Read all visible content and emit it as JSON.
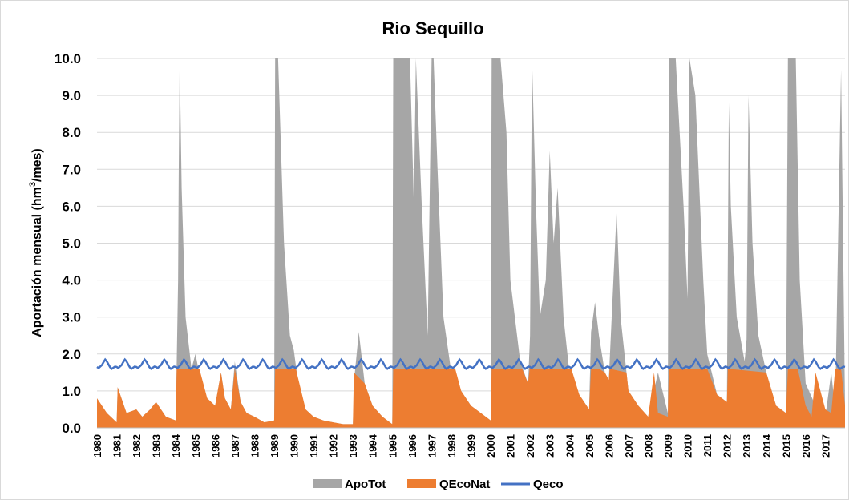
{
  "chart_data": {
    "type": "area",
    "title": "Rio Sequillo",
    "ylabel_prefix": "Aportación mensual (hm",
    "ylabel_sup": "3",
    "ylabel_suffix": "/mes)",
    "ylim": [
      0,
      10
    ],
    "yticks": [
      "0.0",
      "1.0",
      "2.0",
      "3.0",
      "4.0",
      "5.0",
      "6.0",
      "7.0",
      "8.0",
      "9.0",
      "10.0"
    ],
    "grid": true,
    "legend_position": "bottom",
    "x_start_year": 1980,
    "x_end_year": 2018,
    "xticks": [
      "1980",
      "1981",
      "1982",
      "1983",
      "1984",
      "1985",
      "1986",
      "1987",
      "1988",
      "1989",
      "1990",
      "1991",
      "1992",
      "1993",
      "1994",
      "1995",
      "1996",
      "1997",
      "1998",
      "1999",
      "2000",
      "2001",
      "2002",
      "2003",
      "2004",
      "2005",
      "2006",
      "2007",
      "2008",
      "2009",
      "2010",
      "2011",
      "2012",
      "2013",
      "2014",
      "2015",
      "2016",
      "2017"
    ],
    "series": [
      {
        "name": "ApoTot",
        "color": "#a6a6a6",
        "x": [
          1980.0,
          1980.5,
          1981.0,
          1981.05,
          1981.5,
          1982.0,
          1982.3,
          1982.7,
          1983.0,
          1983.5,
          1984.0,
          1984.12,
          1984.15,
          1984.2,
          1984.3,
          1984.5,
          1984.8,
          1985.0,
          1985.3,
          1985.6,
          1986.0,
          1986.3,
          1986.5,
          1986.8,
          1987.0,
          1987.3,
          1987.6,
          1988.0,
          1988.5,
          1989.0,
          1989.05,
          1989.2,
          1989.5,
          1989.8,
          1990.0,
          1990.3,
          1990.6,
          1991.0,
          1991.5,
          1992.0,
          1992.5,
          1993.0,
          1993.1,
          1993.3,
          1993.6,
          1994.0,
          1994.5,
          1995.0,
          1995.05,
          1995.5,
          1995.9,
          1996.1,
          1996.2,
          1996.5,
          1996.8,
          1997.0,
          1997.1,
          1997.3,
          1997.6,
          1998.0,
          1998.5,
          1999.0,
          1999.5,
          2000.0,
          2000.05,
          2000.5,
          2000.8,
          2001.0,
          2001.5,
          2001.9,
          2002.0,
          2002.1,
          2002.3,
          2002.5,
          2002.8,
          2003.0,
          2003.2,
          2003.4,
          2003.7,
          2004.0,
          2004.5,
          2005.0,
          2005.1,
          2005.3,
          2005.5,
          2005.8,
          2006.0,
          2006.2,
          2006.4,
          2006.6,
          2006.9,
          2007.0,
          2007.5,
          2008.0,
          2008.5,
          2009.0,
          2009.05,
          2009.4,
          2009.8,
          2010.0,
          2010.1,
          2010.4,
          2010.8,
          2011.0,
          2011.5,
          2012.0,
          2012.1,
          2012.2,
          2012.5,
          2012.9,
          2013.0,
          2013.1,
          2013.3,
          2013.6,
          2014.0,
          2014.5,
          2015.0,
          2015.1,
          2015.3,
          2015.5,
          2015.7,
          2016.0,
          2016.5,
          2017.0,
          2017.3,
          2017.5,
          2017.8,
          2018.0
        ],
        "values": [
          0.8,
          0.4,
          0.15,
          1.1,
          0.4,
          0.5,
          0.3,
          0.5,
          0.7,
          0.3,
          0.2,
          4.0,
          6.8,
          10.0,
          6.5,
          3.0,
          1.6,
          2.0,
          1.2,
          0.8,
          0.6,
          1.5,
          0.8,
          0.5,
          1.8,
          0.7,
          0.4,
          0.3,
          0.15,
          0.2,
          10.0,
          10.0,
          5.0,
          2.5,
          2.1,
          0.9,
          0.5,
          0.3,
          0.2,
          0.15,
          0.1,
          0.1,
          1.5,
          2.6,
          1.2,
          0.6,
          0.3,
          0.1,
          10.0,
          10.0,
          10.0,
          6.0,
          10.0,
          6.0,
          2.5,
          10.0,
          10.0,
          7.0,
          3.0,
          1.5,
          1.0,
          0.6,
          0.4,
          0.2,
          10.0,
          10.0,
          8.0,
          4.0,
          1.8,
          1.2,
          2.5,
          10.0,
          6.0,
          3.0,
          4.0,
          7.5,
          5.0,
          6.5,
          3.0,
          1.5,
          0.9,
          0.5,
          2.6,
          3.4,
          2.5,
          1.5,
          1.3,
          3.6,
          5.9,
          3.0,
          1.5,
          1.0,
          0.6,
          0.3,
          1.5,
          0.4,
          10.0,
          10.0,
          6.0,
          3.5,
          10.0,
          9.0,
          4.0,
          2.0,
          0.9,
          0.7,
          8.8,
          6.0,
          3.0,
          1.8,
          2.4,
          9.0,
          5.0,
          2.5,
          1.5,
          0.6,
          0.4,
          10.0,
          10.0,
          10.0,
          4.0,
          1.2,
          0.6,
          0.3,
          1.5,
          0.5,
          9.7,
          0.6
        ]
      },
      {
        "name": "QEcoNat",
        "color": "#ed7d31",
        "x": [
          1980.0,
          1980.5,
          1981.0,
          1981.05,
          1981.5,
          1982.0,
          1982.3,
          1982.7,
          1983.0,
          1983.5,
          1984.0,
          1984.05,
          1985.2,
          1985.6,
          1986.0,
          1986.3,
          1986.5,
          1986.8,
          1987.0,
          1987.3,
          1987.6,
          1988.0,
          1988.5,
          1989.0,
          1989.05,
          1990.1,
          1990.6,
          1991.0,
          1991.5,
          1992.0,
          1992.5,
          1993.0,
          1993.05,
          1993.6,
          1994.0,
          1994.5,
          1995.0,
          1995.05,
          1998.2,
          1998.5,
          1999.0,
          1999.5,
          2000.0,
          2000.05,
          2001.6,
          2001.9,
          2002.0,
          2002.05,
          2004.1,
          2004.5,
          2005.0,
          2005.1,
          2005.5,
          2005.8,
          2006.0,
          2006.05,
          2006.9,
          2007.0,
          2007.5,
          2008.0,
          2008.3,
          2008.5,
          2009.0,
          2009.05,
          2011.0,
          2011.5,
          2012.0,
          2012.05,
          2014.0,
          2014.5,
          2015.0,
          2015.1,
          2015.6,
          2016.0,
          2016.3,
          2016.5,
          2017.0,
          2017.3,
          2017.5,
          2017.8,
          2018.0
        ],
        "values": [
          0.8,
          0.4,
          0.15,
          1.1,
          0.4,
          0.5,
          0.3,
          0.5,
          0.7,
          0.3,
          0.2,
          1.6,
          1.6,
          0.8,
          0.6,
          1.5,
          0.8,
          0.5,
          1.6,
          0.7,
          0.4,
          0.3,
          0.15,
          0.2,
          1.6,
          1.6,
          0.5,
          0.3,
          0.2,
          0.15,
          0.1,
          0.1,
          1.5,
          1.2,
          0.6,
          0.3,
          0.1,
          1.6,
          1.6,
          1.0,
          0.6,
          0.4,
          0.2,
          1.6,
          1.6,
          1.2,
          1.7,
          1.6,
          1.6,
          0.9,
          0.5,
          1.6,
          1.6,
          1.5,
          1.3,
          1.6,
          1.5,
          1.0,
          0.6,
          0.3,
          1.5,
          0.4,
          0.3,
          1.6,
          1.6,
          0.9,
          0.7,
          1.6,
          1.5,
          0.6,
          0.4,
          1.6,
          1.6,
          0.6,
          0.3,
          1.5,
          0.5,
          0.4,
          1.6,
          1.6,
          0.6
        ]
      },
      {
        "name": "Qeco",
        "color": "#4472c4",
        "pattern": [
          1.65,
          1.62,
          1.66,
          1.7,
          1.78,
          1.85,
          1.8,
          1.72,
          1.64,
          1.6,
          1.63,
          1.66
        ],
        "values": []
      }
    ]
  }
}
